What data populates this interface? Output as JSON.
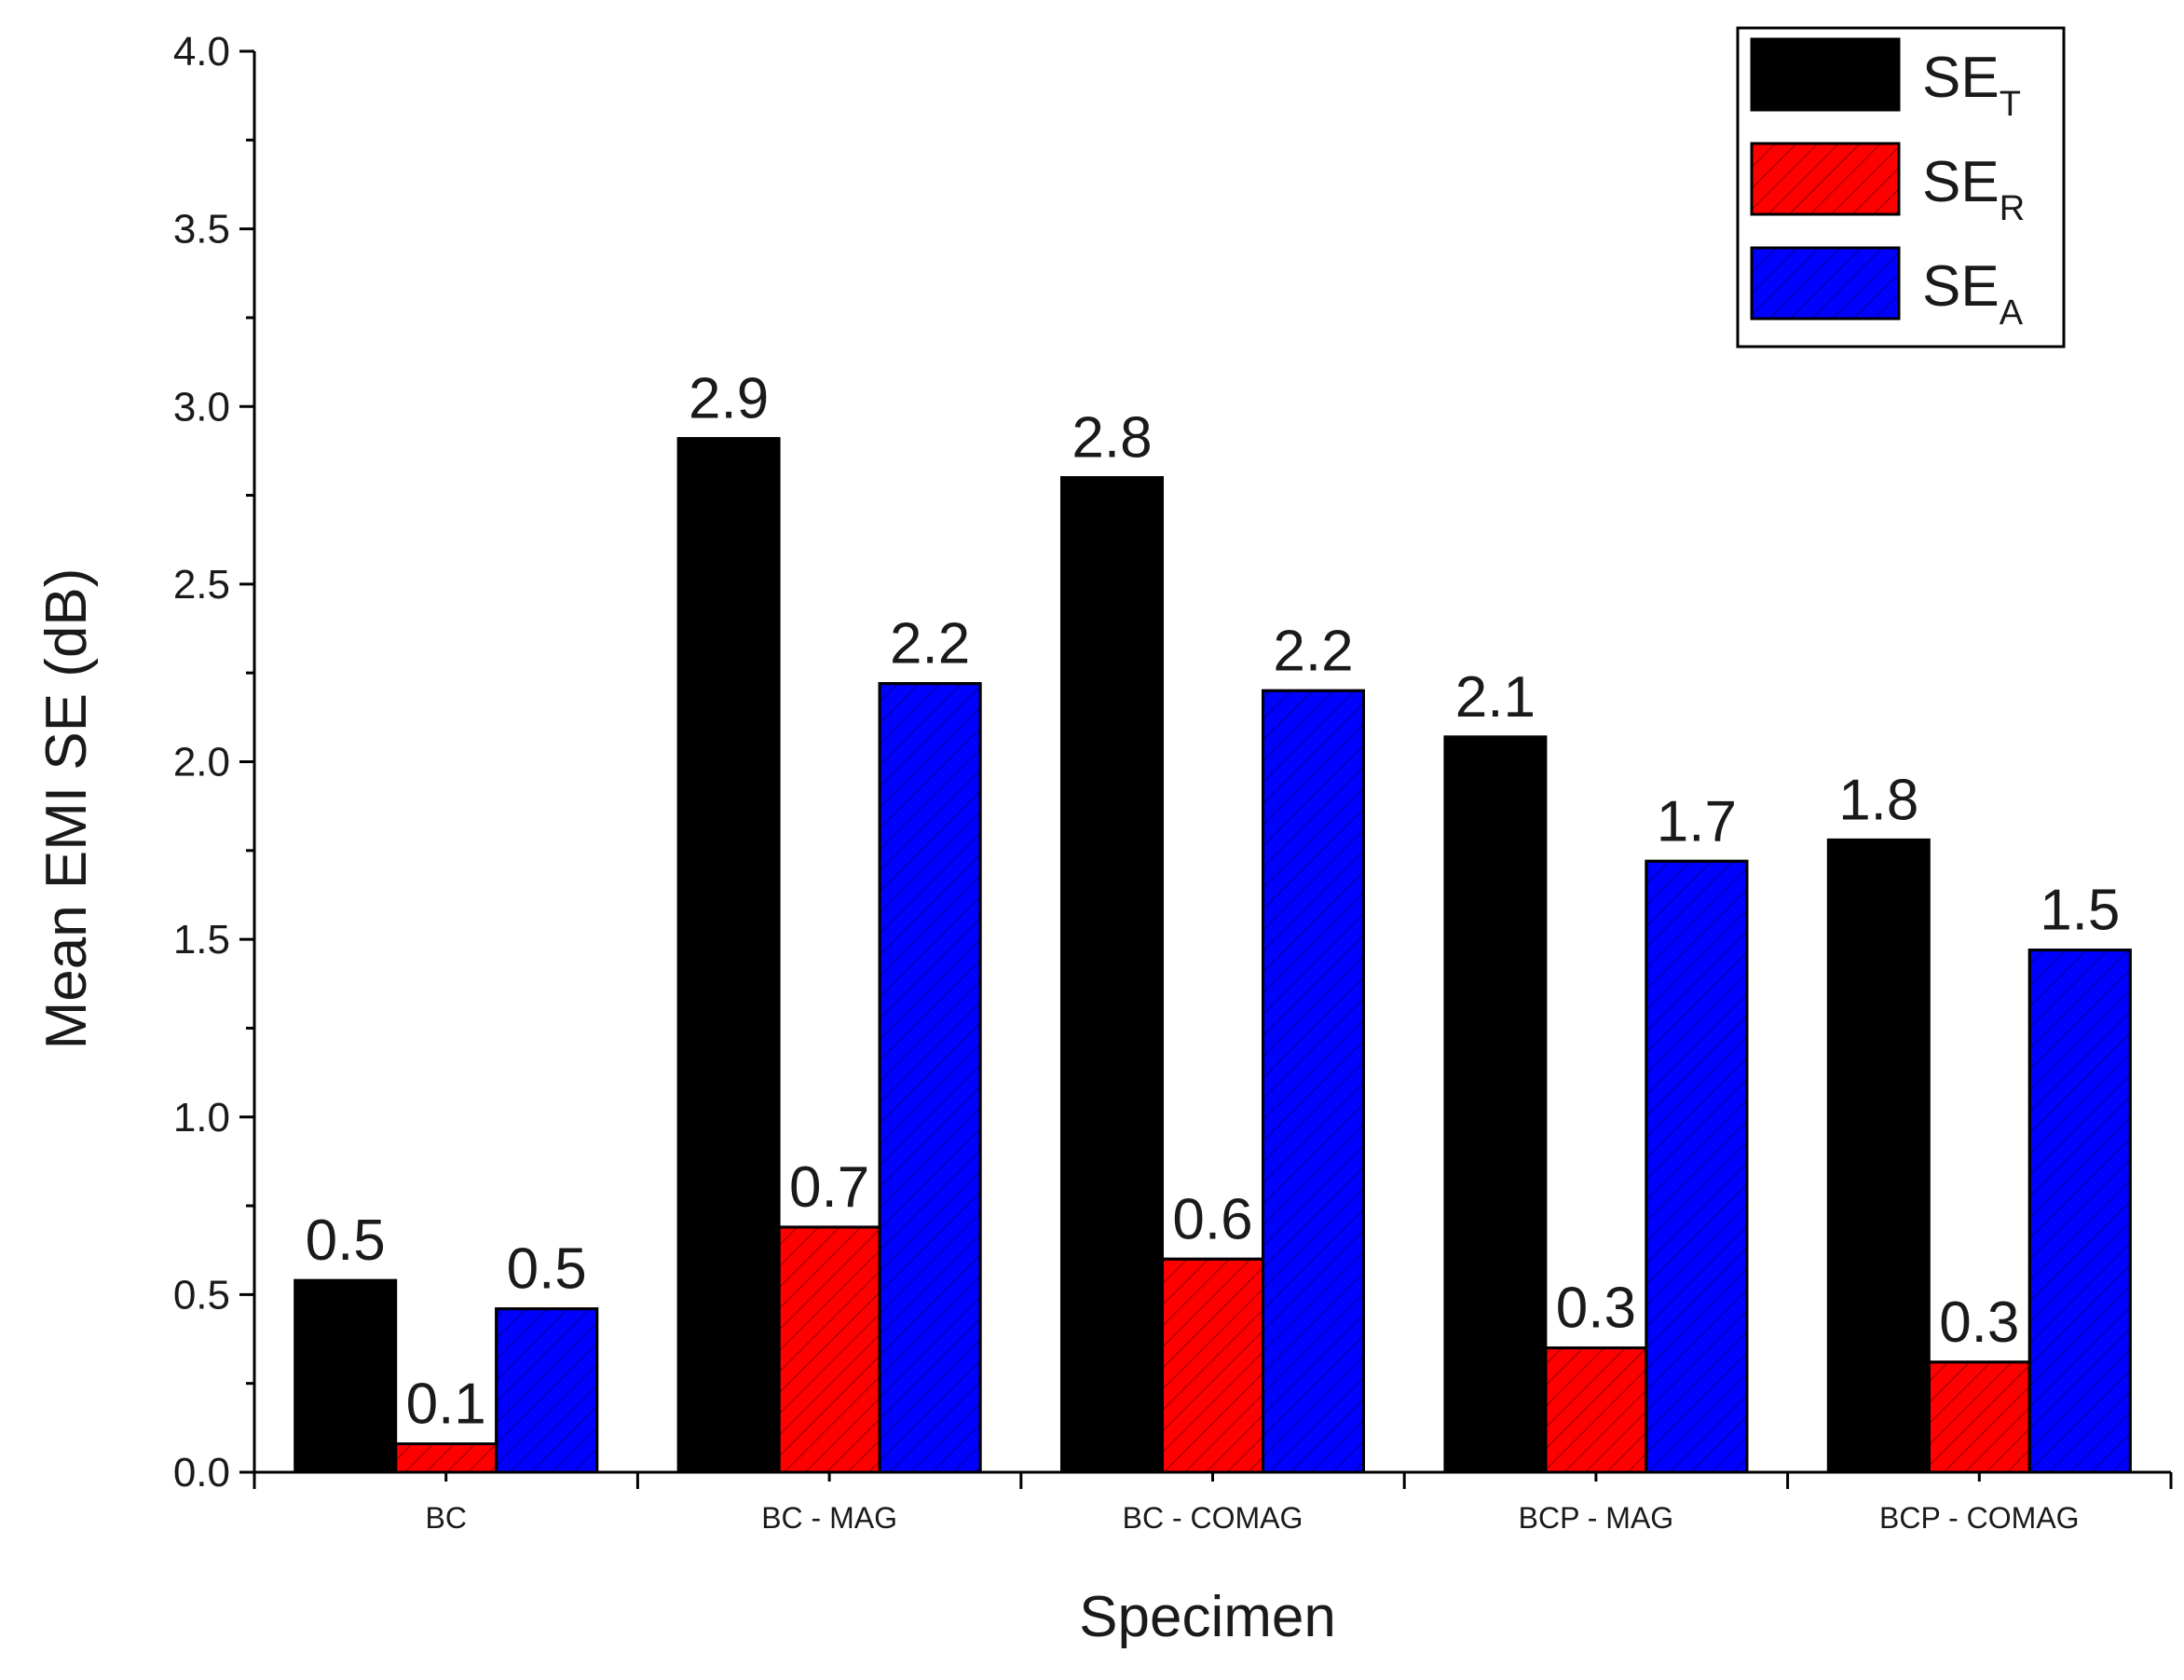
{
  "chart_data": {
    "type": "bar",
    "title": "",
    "xlabel": "Specimen",
    "ylabel": "Mean EMI SE (dB)",
    "ylim": [
      0,
      4.0
    ],
    "yticks": [
      "0.0",
      "0.5",
      "1.0",
      "1.5",
      "2.0",
      "2.5",
      "3.0",
      "3.5",
      "4.0"
    ],
    "categories": [
      "BC",
      "BC - MAG",
      "BC - COMAG",
      "BCP - MAG",
      "BCP - COMAG"
    ],
    "series": [
      {
        "name": "SE_T",
        "legend_main": "SE",
        "legend_sub": "T",
        "color": "#000000",
        "hatch": false,
        "values": [
          0.54,
          2.91,
          2.8,
          2.07,
          1.78
        ],
        "labels": [
          "0.5",
          "2.9",
          "2.8",
          "2.1",
          "1.8"
        ]
      },
      {
        "name": "SE_R",
        "legend_main": "SE",
        "legend_sub": "R",
        "color": "#ff0000",
        "hatch": true,
        "values": [
          0.08,
          0.69,
          0.6,
          0.35,
          0.31
        ],
        "labels": [
          "0.1",
          "0.7",
          "0.6",
          "0.3",
          "0.3"
        ]
      },
      {
        "name": "SE_A",
        "legend_main": "SE",
        "legend_sub": "A",
        "color": "#0000ff",
        "hatch": true,
        "values": [
          0.46,
          2.22,
          2.2,
          1.72,
          1.47
        ],
        "labels": [
          "0.5",
          "2.2",
          "2.2",
          "1.7",
          "1.5"
        ]
      }
    ],
    "legend_position": "top-right",
    "grid": false
  }
}
